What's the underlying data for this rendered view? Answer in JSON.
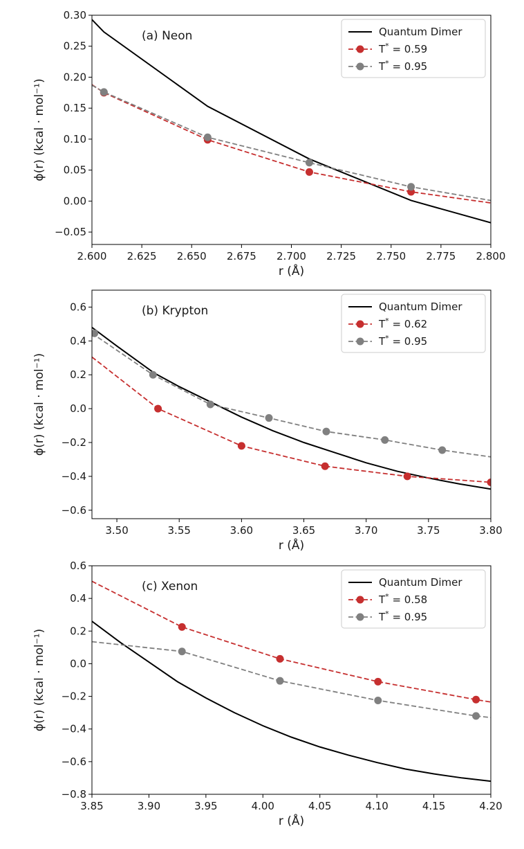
{
  "colors": {
    "quantum": "#000000",
    "red": "#c62f2f",
    "gray": "#808080"
  },
  "chart_data": [
    {
      "type": "line",
      "title": "(a) Neon",
      "xlabel": "r (Å)",
      "ylabel": "ϕ(r) (kcal · mol⁻¹)",
      "xlim": [
        2.6,
        2.8
      ],
      "ylim": [
        -0.07,
        0.3
      ],
      "xticks": [
        2.6,
        2.625,
        2.65,
        2.675,
        2.7,
        2.725,
        2.75,
        2.775,
        2.8
      ],
      "xtick_labels": [
        "2.600",
        "2.625",
        "2.650",
        "2.675",
        "2.700",
        "2.725",
        "2.750",
        "2.775",
        "2.800"
      ],
      "yticks": [
        -0.05,
        0.0,
        0.05,
        0.1,
        0.15,
        0.2,
        0.25,
        0.3
      ],
      "ytick_labels": [
        "−0.05",
        "0.00",
        "0.05",
        "0.10",
        "0.15",
        "0.20",
        "0.25",
        "0.30"
      ],
      "legend_position": "top-right",
      "series": [
        {
          "name": "Quantum Dimer",
          "style": "solid",
          "color": "#000000",
          "markers": false,
          "x": [
            2.6,
            2.606,
            2.658,
            2.709,
            2.76,
            2.8
          ],
          "y": [
            0.293,
            0.273,
            0.153,
            0.068,
            0.001,
            -0.035
          ]
        },
        {
          "name": "T* = 0.59",
          "legend_main": "T",
          "legend_sup": "*",
          "legend_rest": " = 0.59",
          "style": "dashed",
          "color": "#c62f2f",
          "markers": true,
          "x": [
            2.6,
            2.606,
            2.658,
            2.709,
            2.76,
            2.8
          ],
          "y": [
            0.188,
            0.175,
            0.099,
            0.047,
            0.015,
            -0.003
          ],
          "marker_x": [
            2.606,
            2.658,
            2.709,
            2.76
          ],
          "marker_y": [
            0.175,
            0.099,
            0.047,
            0.015
          ]
        },
        {
          "name": "T* = 0.95",
          "legend_main": "T",
          "legend_sup": "*",
          "legend_rest": " = 0.95",
          "style": "dashed",
          "color": "#808080",
          "markers": true,
          "x": [
            2.6,
            2.606,
            2.658,
            2.709,
            2.76,
            2.8
          ],
          "y": [
            0.187,
            0.176,
            0.103,
            0.062,
            0.023,
            0.001
          ],
          "marker_x": [
            2.606,
            2.658,
            2.709,
            2.76
          ],
          "marker_y": [
            0.176,
            0.103,
            0.062,
            0.023
          ]
        }
      ]
    },
    {
      "type": "line",
      "title": "(b) Krypton",
      "xlabel": "r (Å)",
      "ylabel": "ϕ(r) (kcal · mol⁻¹)",
      "xlim": [
        3.48,
        3.8
      ],
      "ylim": [
        -0.65,
        0.7
      ],
      "xticks": [
        3.5,
        3.55,
        3.6,
        3.65,
        3.7,
        3.75,
        3.8
      ],
      "xtick_labels": [
        "3.50",
        "3.55",
        "3.60",
        "3.65",
        "3.70",
        "3.75",
        "3.80"
      ],
      "yticks": [
        -0.6,
        -0.4,
        -0.2,
        0.0,
        0.2,
        0.4,
        0.6
      ],
      "ytick_labels": [
        "−0.6",
        "−0.4",
        "−0.2",
        "0.0",
        "0.2",
        "0.4",
        "0.6"
      ],
      "legend_position": "top-right",
      "series": [
        {
          "name": "Quantum Dimer",
          "style": "solid",
          "color": "#000000",
          "markers": false,
          "x": [
            3.48,
            3.5,
            3.53,
            3.55,
            3.575,
            3.6,
            3.625,
            3.65,
            3.675,
            3.7,
            3.725,
            3.75,
            3.775,
            3.8
          ],
          "y": [
            0.48,
            0.37,
            0.21,
            0.13,
            0.04,
            -0.05,
            -0.13,
            -0.2,
            -0.26,
            -0.32,
            -0.37,
            -0.41,
            -0.445,
            -0.475
          ]
        },
        {
          "name": "T* = 0.62",
          "legend_main": "T",
          "legend_sup": "*",
          "legend_rest": " = 0.62",
          "style": "dashed",
          "color": "#c62f2f",
          "markers": true,
          "x": [
            3.48,
            3.533,
            3.6,
            3.667,
            3.733,
            3.8
          ],
          "y": [
            0.305,
            0.0,
            -0.22,
            -0.34,
            -0.4,
            -0.435
          ],
          "marker_x": [
            3.533,
            3.6,
            3.667,
            3.733,
            3.8
          ],
          "marker_y": [
            0.0,
            -0.22,
            -0.34,
            -0.4,
            -0.435
          ]
        },
        {
          "name": "T* = 0.95",
          "legend_main": "T",
          "legend_sup": "*",
          "legend_rest": " = 0.95",
          "style": "dashed",
          "color": "#808080",
          "markers": true,
          "x": [
            3.48,
            3.529,
            3.575,
            3.622,
            3.668,
            3.715,
            3.761,
            3.8
          ],
          "y": [
            0.445,
            0.2,
            0.025,
            -0.055,
            -0.135,
            -0.185,
            -0.245,
            -0.285
          ],
          "marker_x": [
            3.482,
            3.529,
            3.575,
            3.622,
            3.668,
            3.715,
            3.761
          ],
          "marker_y": [
            0.445,
            0.2,
            0.025,
            -0.055,
            -0.135,
            -0.185,
            -0.245
          ]
        }
      ]
    },
    {
      "type": "line",
      "title": "(c) Xenon",
      "xlabel": "r (Å)",
      "ylabel": "ϕ(r) (kcal · mol⁻¹)",
      "xlim": [
        3.85,
        4.2
      ],
      "ylim": [
        -0.8,
        0.6
      ],
      "xticks": [
        3.85,
        3.9,
        3.95,
        4.0,
        4.05,
        4.1,
        4.15,
        4.2
      ],
      "xtick_labels": [
        "3.85",
        "3.90",
        "3.95",
        "4.00",
        "4.05",
        "4.10",
        "4.15",
        "4.20"
      ],
      "yticks": [
        -0.8,
        -0.6,
        -0.4,
        -0.2,
        0.0,
        0.2,
        0.4,
        0.6
      ],
      "ytick_labels": [
        "−0.8",
        "−0.6",
        "−0.4",
        "−0.2",
        "0.0",
        "0.2",
        "0.4",
        "0.6"
      ],
      "legend_position": "top-right",
      "series": [
        {
          "name": "Quantum Dimer",
          "style": "solid",
          "color": "#000000",
          "markers": false,
          "x": [
            3.85,
            3.875,
            3.9,
            3.925,
            3.95,
            3.975,
            4.0,
            4.025,
            4.05,
            4.075,
            4.1,
            4.125,
            4.15,
            4.175,
            4.2
          ],
          "y": [
            0.26,
            0.13,
            0.01,
            -0.11,
            -0.21,
            -0.3,
            -0.38,
            -0.45,
            -0.51,
            -0.56,
            -0.605,
            -0.645,
            -0.675,
            -0.7,
            -0.72
          ]
        },
        {
          "name": "T* = 0.58",
          "legend_main": "T",
          "legend_sup": "*",
          "legend_rest": " = 0.58",
          "style": "dashed",
          "color": "#c62f2f",
          "markers": true,
          "x": [
            3.85,
            3.929,
            4.015,
            4.101,
            4.187,
            4.2
          ],
          "y": [
            0.505,
            0.225,
            0.03,
            -0.11,
            -0.22,
            -0.235
          ],
          "marker_x": [
            3.929,
            4.015,
            4.101,
            4.187
          ],
          "marker_y": [
            0.225,
            0.03,
            -0.11,
            -0.22
          ]
        },
        {
          "name": "T* = 0.95",
          "legend_main": "T",
          "legend_sup": "*",
          "legend_rest": " = 0.95",
          "style": "dashed",
          "color": "#808080",
          "markers": true,
          "x": [
            3.85,
            3.929,
            4.015,
            4.101,
            4.187,
            4.2
          ],
          "y": [
            0.135,
            0.075,
            -0.105,
            -0.225,
            -0.32,
            -0.33
          ],
          "marker_x": [
            3.929,
            4.015,
            4.101,
            4.187
          ],
          "marker_y": [
            0.075,
            -0.105,
            -0.225,
            -0.32
          ]
        }
      ]
    }
  ]
}
